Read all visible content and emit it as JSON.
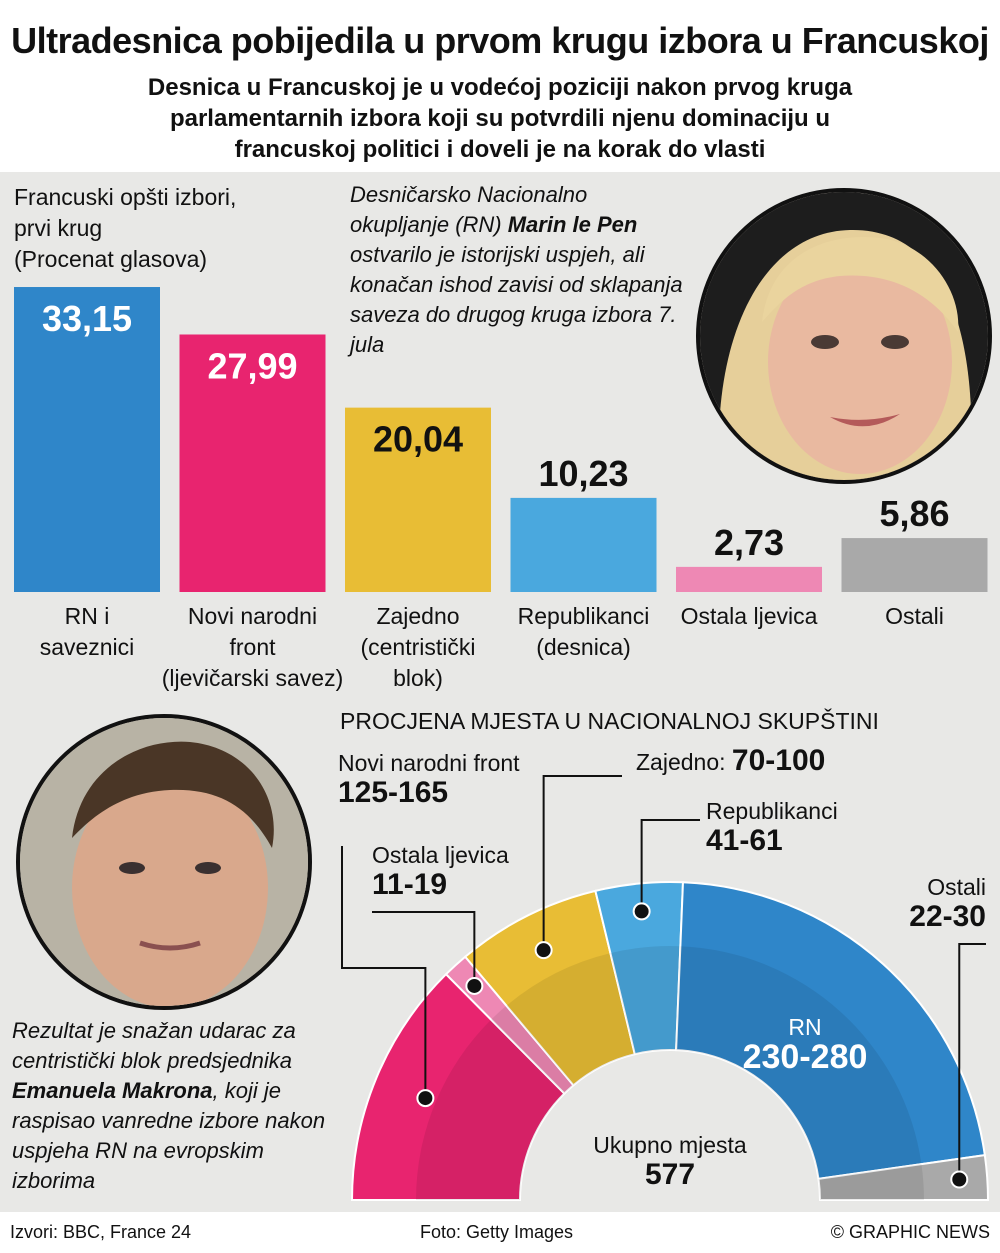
{
  "title": "Ultradesnica pobijedila u prvom krugu izbora u Francuskoj",
  "subtitle": "Desnica u Francuskoj je u vodećoj poziciji nakon prvog kruga parlamentarnih izbora koji su potvrdili njenu dominaciju u francuskoj politici i doveli je na korak do vlasti",
  "chart_data": [
    {
      "type": "bar",
      "title_lines": [
        "Francuski opšti izbori,",
        "prvi krug",
        "(Procenat glasova)"
      ],
      "categories": [
        "RN i saveznici",
        "Novi narodni front (ljevičarski savez)",
        "Zajedno (centristički blok)",
        "Republikanci (desnica)",
        "Ostala ljevica",
        "Ostali"
      ],
      "category_lines": [
        [
          "RN i",
          "saveznici"
        ],
        [
          "Novi narodni",
          "front",
          "(ljevičarski savez)"
        ],
        [
          "Zajedno",
          "(centristički",
          "blok)"
        ],
        [
          "Republikanci",
          "(desnica)"
        ],
        [
          "Ostala ljevica"
        ],
        [
          "Ostali"
        ]
      ],
      "values": [
        33.15,
        27.99,
        20.04,
        10.23,
        2.73,
        5.86
      ],
      "value_labels": [
        "33,15",
        "27,99",
        "20,04",
        "10,23",
        "2,73",
        "5,86"
      ],
      "colors": [
        "#2f86c9",
        "#e8246f",
        "#e8bd35",
        "#4aa8de",
        "#ee88b4",
        "#a9a9a9"
      ],
      "value_label_inside": [
        true,
        true,
        true,
        false,
        false,
        false
      ],
      "value_label_color": [
        "#ffffff",
        "#ffffff",
        "#111111",
        "#111111",
        "#111111",
        "#111111"
      ]
    },
    {
      "type": "hemicycle",
      "title": "PROCJENA MJESTA U NACIONALNOJ SKUPŠTINI",
      "total_label": "Ukupno mjesta",
      "total": "577",
      "segments": [
        {
          "name": "Novi narodni front",
          "range": "125-165",
          "low": 125,
          "high": 165,
          "color": "#e8246f"
        },
        {
          "name": "Ostala ljevica",
          "range": "11-19",
          "low": 11,
          "high": 19,
          "color": "#ee88b4"
        },
        {
          "name": "Zajedno:",
          "range": "70-100",
          "low": 70,
          "high": 100,
          "color": "#e8bd35"
        },
        {
          "name": "Republikanci",
          "range": "41-61",
          "low": 41,
          "high": 61,
          "color": "#4aa8de"
        },
        {
          "name": "RN",
          "range": "230-280",
          "low": 230,
          "high": 280,
          "color": "#2f86c9"
        },
        {
          "name": "Ostali",
          "range": "22-30",
          "low": 22,
          "high": 30,
          "color": "#a9a9a9"
        }
      ]
    }
  ],
  "quotes": {
    "lepen": {
      "before": "Desničarsko Nacionalno okupljanje (RN) ",
      "bold": "Marin le Pen",
      "after": " ostvarilo je istorijski uspjeh, ali konačan ishod zavisi od sklapanja saveza do drugog kruga izbora 7. jula"
    },
    "macron": {
      "before": "Rezultat je snažan udarac za centristički blok predsjednika ",
      "bold": "Emanuela Makrona",
      "after": ", koji je raspisao vanredne izbore nakon uspjeha RN na evropskim izborima"
    }
  },
  "footer": {
    "sources": "Izvori: BBC, France 24",
    "photo": "Foto: Getty Images",
    "credit": "© GRAPHIC NEWS"
  }
}
